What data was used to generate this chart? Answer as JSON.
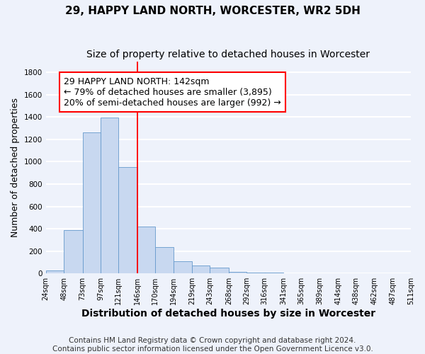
{
  "title": "29, HAPPY LAND NORTH, WORCESTER, WR2 5DH",
  "subtitle": "Size of property relative to detached houses in Worcester",
  "xlabel": "Distribution of detached houses by size in Worcester",
  "ylabel": "Number of detached properties",
  "bar_lefts": [
    24,
    48,
    73,
    97,
    121,
    146,
    170,
    194,
    219,
    243,
    268,
    292,
    316,
    341,
    365,
    389,
    414,
    438,
    462,
    487
  ],
  "bar_widths": [
    24,
    25,
    24,
    24,
    25,
    24,
    24,
    25,
    24,
    25,
    24,
    24,
    25,
    24,
    24,
    25,
    24,
    24,
    25,
    24
  ],
  "bar_heights": [
    25,
    390,
    1260,
    1395,
    950,
    420,
    235,
    110,
    70,
    50,
    15,
    5,
    5,
    3,
    0,
    0,
    3,
    0,
    0,
    0
  ],
  "bar_color": "#c8d8f0",
  "bar_edgecolor": "#6699cc",
  "vline_x": 146,
  "vline_color": "red",
  "annotation_line1": "29 HAPPY LAND NORTH: 142sqm",
  "annotation_line2": "← 79% of detached houses are smaller (3,895)",
  "annotation_line3": "20% of semi-detached houses are larger (992) →",
  "annotation_box_edgecolor": "red",
  "annotation_box_facecolor": "white",
  "ylim": [
    0,
    1900
  ],
  "yticks": [
    0,
    200,
    400,
    600,
    800,
    1000,
    1200,
    1400,
    1600,
    1800
  ],
  "tick_labels": [
    "24sqm",
    "48sqm",
    "73sqm",
    "97sqm",
    "121sqm",
    "146sqm",
    "170sqm",
    "194sqm",
    "219sqm",
    "243sqm",
    "268sqm",
    "292sqm",
    "316sqm",
    "341sqm",
    "365sqm",
    "389sqm",
    "414sqm",
    "438sqm",
    "462sqm",
    "487sqm",
    "511sqm"
  ],
  "xtick_positions": [
    24,
    48,
    73,
    97,
    121,
    146,
    170,
    194,
    219,
    243,
    268,
    292,
    316,
    341,
    365,
    389,
    414,
    438,
    462,
    487,
    511
  ],
  "footer_line1": "Contains HM Land Registry data © Crown copyright and database right 2024.",
  "footer_line2": "Contains public sector information licensed under the Open Government Licence v3.0.",
  "background_color": "#eef2fb",
  "grid_color": "white",
  "title_fontsize": 11,
  "subtitle_fontsize": 10,
  "xlabel_fontsize": 10,
  "ylabel_fontsize": 9,
  "annotation_fontsize": 9,
  "tick_fontsize": 7,
  "footer_fontsize": 7.5
}
